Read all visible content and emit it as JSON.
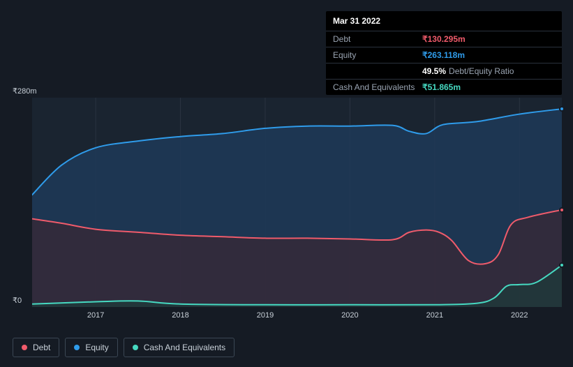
{
  "tooltip": {
    "date": "Mar 31 2022",
    "rows": [
      {
        "label": "Debt",
        "value": "₹130.295m",
        "color": "#f05b6b",
        "sub": ""
      },
      {
        "label": "Equity",
        "value": "₹263.118m",
        "color": "#2f9ceb",
        "sub": ""
      },
      {
        "label": "",
        "value": "49.5%",
        "color": "#ffffff",
        "sub": "Debt/Equity Ratio"
      },
      {
        "label": "Cash And Equivalents",
        "value": "₹51.865m",
        "color": "#46d9c1",
        "sub": ""
      }
    ]
  },
  "chart": {
    "type": "area",
    "background_color": "#151b24",
    "plot_background": "#1a2430",
    "grid_color": "#2a3340",
    "ylim": [
      0,
      280
    ],
    "ylabels": {
      "top": "₹280m",
      "bottom": "₹0"
    },
    "xlim": [
      2016.25,
      2022.5
    ],
    "xticks": [
      2017,
      2018,
      2019,
      2020,
      2021,
      2022
    ],
    "series": [
      {
        "name": "Equity",
        "color": "#2f9ceb",
        "fill": "#1e3a58",
        "fill_opacity": 0.85,
        "line_width": 2,
        "points": [
          [
            2016.25,
            150
          ],
          [
            2016.6,
            190
          ],
          [
            2017.0,
            213
          ],
          [
            2017.5,
            222
          ],
          [
            2018.0,
            228
          ],
          [
            2018.5,
            232
          ],
          [
            2019.0,
            239
          ],
          [
            2019.5,
            242
          ],
          [
            2020.0,
            242
          ],
          [
            2020.5,
            243
          ],
          [
            2020.7,
            235
          ],
          [
            2020.9,
            232
          ],
          [
            2021.1,
            244
          ],
          [
            2021.5,
            248
          ],
          [
            2022.0,
            258
          ],
          [
            2022.5,
            265
          ]
        ]
      },
      {
        "name": "Debt",
        "color": "#f05b6b",
        "fill": "#3b2733",
        "fill_opacity": 0.7,
        "line_width": 2,
        "points": [
          [
            2016.25,
            118
          ],
          [
            2016.6,
            112
          ],
          [
            2017.0,
            104
          ],
          [
            2017.5,
            100
          ],
          [
            2018.0,
            96
          ],
          [
            2018.5,
            94
          ],
          [
            2019.0,
            92
          ],
          [
            2019.5,
            92
          ],
          [
            2020.0,
            91
          ],
          [
            2020.5,
            90
          ],
          [
            2020.7,
            100
          ],
          [
            2020.9,
            103
          ],
          [
            2021.05,
            100
          ],
          [
            2021.2,
            89
          ],
          [
            2021.4,
            62
          ],
          [
            2021.6,
            58
          ],
          [
            2021.75,
            70
          ],
          [
            2021.9,
            110
          ],
          [
            2022.1,
            120
          ],
          [
            2022.5,
            130
          ]
        ]
      },
      {
        "name": "Cash And Equivalents",
        "color": "#46d9c1",
        "fill": "#1f3a3a",
        "fill_opacity": 0.8,
        "line_width": 2,
        "points": [
          [
            2016.25,
            4
          ],
          [
            2017.0,
            7
          ],
          [
            2017.5,
            8
          ],
          [
            2018.0,
            4
          ],
          [
            2019.0,
            3
          ],
          [
            2020.0,
            3
          ],
          [
            2021.0,
            3
          ],
          [
            2021.5,
            5
          ],
          [
            2021.7,
            12
          ],
          [
            2021.85,
            28
          ],
          [
            2022.0,
            30
          ],
          [
            2022.2,
            33
          ],
          [
            2022.5,
            56
          ]
        ]
      }
    ],
    "legend": [
      {
        "label": "Debt",
        "color": "#f05b6b"
      },
      {
        "label": "Equity",
        "color": "#2f9ceb"
      },
      {
        "label": "Cash And Equivalents",
        "color": "#46d9c1"
      }
    ],
    "label_fontsize": 11,
    "legend_fontsize": 12
  }
}
